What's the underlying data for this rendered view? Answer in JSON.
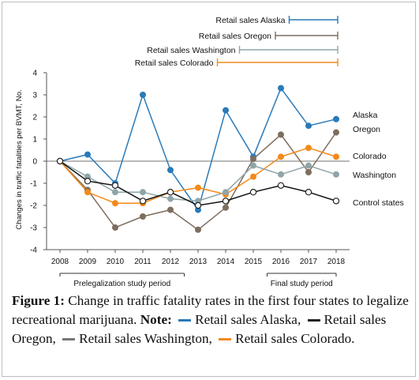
{
  "chart_data": {
    "type": "line",
    "x": [
      2008,
      2009,
      2010,
      2011,
      2012,
      2013,
      2014,
      2015,
      2016,
      2017,
      2018
    ],
    "ylabel": "Changes in traffic fatalities per BVMT, No.",
    "ylim": [
      -4,
      4
    ],
    "yticks": [
      -4,
      -3,
      -2,
      -1,
      0,
      1,
      2,
      3,
      4
    ],
    "grid": false,
    "series": [
      {
        "name": "Alaska",
        "color": "#2a7ab8",
        "values": [
          0,
          0.3,
          -1.0,
          3.0,
          -0.4,
          -2.2,
          2.3,
          0.2,
          3.3,
          1.6,
          1.9
        ]
      },
      {
        "name": "Oregon",
        "color": "#7d6e5e",
        "values": [
          0,
          -1.3,
          -3.0,
          -2.5,
          -2.2,
          -3.1,
          -2.1,
          0.1,
          1.2,
          -0.5,
          1.3
        ]
      },
      {
        "name": "Colorado",
        "color": "#f28a1a",
        "values": [
          0,
          -1.4,
          -1.9,
          -1.9,
          -1.4,
          -1.2,
          -1.5,
          -0.7,
          0.2,
          0.6,
          0.2
        ]
      },
      {
        "name": "Washington",
        "color": "#8fa5a8",
        "values": [
          0,
          -0.7,
          -1.4,
          -1.4,
          -1.7,
          -1.8,
          -1.4,
          -0.2,
          -0.6,
          -0.2,
          -0.6
        ]
      },
      {
        "name": "Control states",
        "color": "#111111",
        "hollow": true,
        "values": [
          0,
          -0.9,
          -1.1,
          -1.8,
          -1.4,
          -2.0,
          -1.8,
          -1.4,
          -1.1,
          -1.4,
          -1.8
        ]
      }
    ],
    "retail_sales": [
      {
        "label": "Retail sales Alaska",
        "color": "#2a7ab8",
        "from": 2016.3
      },
      {
        "label": "Retail sales Oregon",
        "color": "#7d6e5e",
        "from": 2015.8
      },
      {
        "label": "Retail sales Washington",
        "color": "#8fa5a8",
        "from": 2014.5
      },
      {
        "label": "Retail sales Colorado",
        "color": "#f28a1a",
        "from": 2013.7
      }
    ],
    "periods": [
      {
        "label": "Prelegalization study period",
        "from": 2008,
        "to": 2012.5
      },
      {
        "label": "Final study period",
        "from": 2015.5,
        "to": 2018
      }
    ]
  },
  "caption": {
    "figure_label": "Figure 1:",
    "text": " Change in traffic fatality rates in the first four states to legalize recreational marijuana. ",
    "note_label": "Note:",
    "items": [
      {
        "text": "Retail sales Alaska,",
        "color": "#2a7ab8"
      },
      {
        "text": "Retail sales Oregon,",
        "color": "#222222"
      },
      {
        "text": "Retail sales Washington,",
        "color": "#777777"
      },
      {
        "text": "Retail sales Colorado.",
        "color": "#f28a1a"
      }
    ]
  }
}
